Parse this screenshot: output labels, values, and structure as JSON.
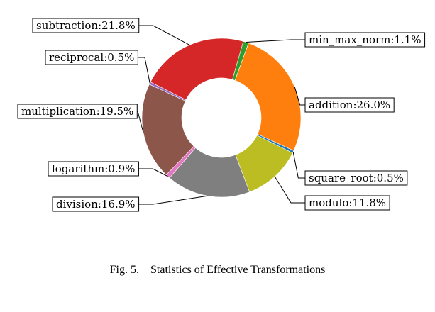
{
  "chart_data": {
    "type": "pie",
    "donut": true,
    "legend": "none",
    "slices": [
      {
        "label": "min_max_norm:1.1%",
        "value": 1.1,
        "color": "#2ca02c"
      },
      {
        "label": "addition:26.0%",
        "value": 26.0,
        "color": "#ff7f0e"
      },
      {
        "label": "square_root:0.5%",
        "value": 0.5,
        "color": "#1f77b4"
      },
      {
        "label": "modulo:11.8%",
        "value": 11.8,
        "color": "#bcbd22"
      },
      {
        "label": "division:16.9%",
        "value": 16.9,
        "color": "#7f7f7f"
      },
      {
        "label": "logarithm:0.9%",
        "value": 0.9,
        "color": "#e377c2"
      },
      {
        "label": "multiplication:19.5%",
        "value": 19.5,
        "color": "#8c564b"
      },
      {
        "label": "reciprocal:0.5%",
        "value": 0.5,
        "color": "#9467bd"
      },
      {
        "label": "subtraction:21.8%",
        "value": 21.8,
        "color": "#d62728"
      }
    ]
  },
  "caption": "Fig. 5. Statistics of Effective Transformations"
}
